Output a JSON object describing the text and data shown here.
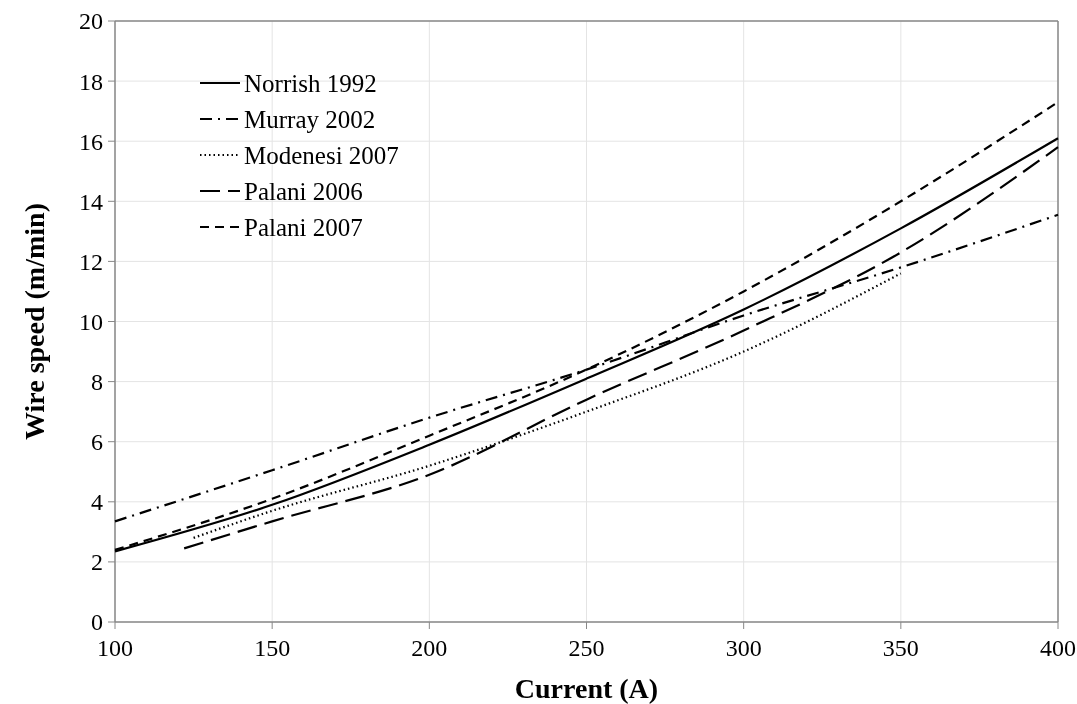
{
  "chart_data": {
    "type": "line",
    "xlabel": "Current (A)",
    "ylabel": "Wire speed (m/min)",
    "xlim": [
      100,
      400
    ],
    "xticks": [
      100,
      150,
      200,
      250,
      300,
      350,
      400
    ],
    "ylim": [
      0,
      20
    ],
    "yticks": [
      0,
      2,
      4,
      6,
      8,
      10,
      12,
      14,
      16,
      18,
      20
    ],
    "grid": true,
    "legend": "top left",
    "series": [
      {
        "name": "Norrish 1992",
        "color": "#000000",
        "line_style": "solid",
        "x": [
          100,
          150,
          200,
          250,
          300,
          350,
          400
        ],
        "values": [
          2.35,
          3.9,
          5.9,
          8.1,
          10.4,
          13.1,
          16.1
        ]
      },
      {
        "name": "Murray 2002",
        "color": "#000000",
        "line_style": "dashdot",
        "x": [
          100,
          150,
          200,
          250,
          300,
          350,
          400
        ],
        "values": [
          3.35,
          5.05,
          6.8,
          8.4,
          10.2,
          11.8,
          13.55
        ]
      },
      {
        "name": "Modenesi 2007",
        "color": "#000000",
        "line_style": "dotted",
        "x": [
          125,
          150,
          200,
          250,
          300,
          350
        ],
        "values": [
          2.8,
          3.7,
          5.2,
          7.0,
          9.0,
          11.6
        ]
      },
      {
        "name": "Palani 2006",
        "color": "#000000",
        "line_style": "longdash",
        "x": [
          122,
          150,
          200,
          250,
          300,
          350,
          400
        ],
        "values": [
          2.45,
          3.35,
          4.9,
          7.4,
          9.7,
          12.3,
          15.8
        ]
      },
      {
        "name": "Palani 2007",
        "color": "#000000",
        "line_style": "dashed",
        "x": [
          100,
          150,
          200,
          250,
          300,
          350,
          400
        ],
        "values": [
          2.4,
          4.1,
          6.2,
          8.4,
          11.0,
          14.0,
          17.3
        ]
      }
    ]
  }
}
